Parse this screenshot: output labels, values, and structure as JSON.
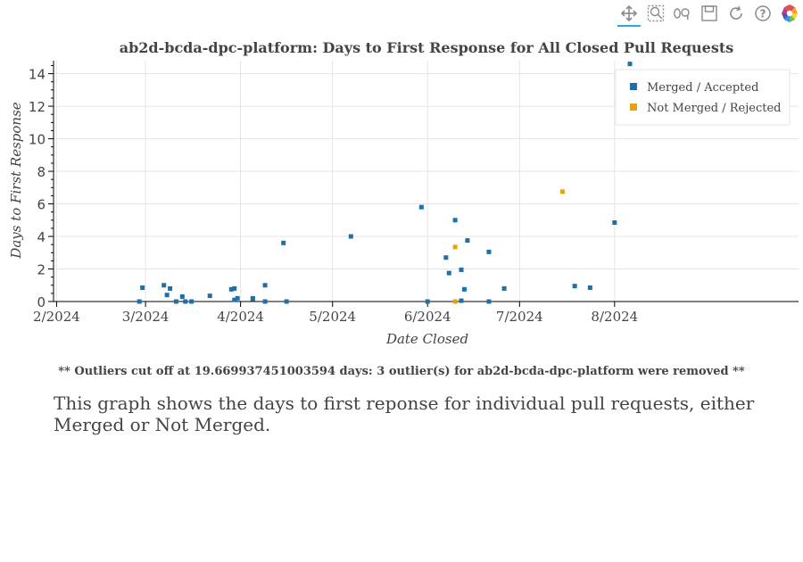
{
  "toolbar": {
    "tools": [
      {
        "name": "pan-tool-icon",
        "label": "Pan",
        "active": true
      },
      {
        "name": "box-zoom-tool-icon",
        "label": "Box Zoom",
        "active": false
      },
      {
        "name": "wheel-zoom-tool-icon",
        "label": "Wheel Zoom",
        "active": false
      },
      {
        "name": "save-tool-icon",
        "label": "Save",
        "active": false
      },
      {
        "name": "reset-tool-icon",
        "label": "Reset",
        "active": false
      },
      {
        "name": "help-tool-icon",
        "label": "Help",
        "active": false
      },
      {
        "name": "bokeh-logo-icon",
        "label": "Bokeh",
        "active": false
      }
    ]
  },
  "chart_data": {
    "type": "scatter",
    "title": "ab2d-bcda-dpc-platform: Days to First Response for All Closed Pull Requests",
    "xlabel": "Date Closed",
    "ylabel": "Days to First Response",
    "xlim": [
      "2024-01-31",
      "2024-09-30"
    ],
    "ylim": [
      0,
      14.8
    ],
    "x_ticks": [
      {
        "date": "2024-02-01",
        "label": "2/2024"
      },
      {
        "date": "2024-03-01",
        "label": "3/2024"
      },
      {
        "date": "2024-04-01",
        "label": "4/2024"
      },
      {
        "date": "2024-05-01",
        "label": "5/2024"
      },
      {
        "date": "2024-06-01",
        "label": "6/2024"
      },
      {
        "date": "2024-07-01",
        "label": "7/2024"
      },
      {
        "date": "2024-08-01",
        "label": "8/2024"
      }
    ],
    "y_ticks": [
      0,
      2,
      4,
      6,
      8,
      10,
      12,
      14
    ],
    "grid": true,
    "legend_position": "top-right",
    "series": [
      {
        "name": "Merged / Accepted",
        "color": "#1f6fa8",
        "points": [
          {
            "x": "2024-02-28",
            "y": 0.0
          },
          {
            "x": "2024-02-29",
            "y": 0.85
          },
          {
            "x": "2024-03-07",
            "y": 1.0
          },
          {
            "x": "2024-03-08",
            "y": 0.4
          },
          {
            "x": "2024-03-09",
            "y": 0.8
          },
          {
            "x": "2024-03-11",
            "y": 0.0
          },
          {
            "x": "2024-03-13",
            "y": 0.3
          },
          {
            "x": "2024-03-14",
            "y": 0.0
          },
          {
            "x": "2024-03-16",
            "y": 0.0
          },
          {
            "x": "2024-03-22",
            "y": 0.35
          },
          {
            "x": "2024-03-29",
            "y": 0.75
          },
          {
            "x": "2024-03-30",
            "y": 0.8
          },
          {
            "x": "2024-03-30",
            "y": 0.1
          },
          {
            "x": "2024-03-31",
            "y": 0.2
          },
          {
            "x": "2024-04-05",
            "y": 0.2
          },
          {
            "x": "2024-04-05",
            "y": 0.15
          },
          {
            "x": "2024-04-09",
            "y": 1.0
          },
          {
            "x": "2024-04-09",
            "y": 0.0
          },
          {
            "x": "2024-04-15",
            "y": 3.6
          },
          {
            "x": "2024-04-16",
            "y": 0.0
          },
          {
            "x": "2024-05-07",
            "y": 4.0
          },
          {
            "x": "2024-05-30",
            "y": 5.8
          },
          {
            "x": "2024-06-01",
            "y": 0.0
          },
          {
            "x": "2024-06-07",
            "y": 2.7
          },
          {
            "x": "2024-06-08",
            "y": 1.75
          },
          {
            "x": "2024-06-10",
            "y": 5.0
          },
          {
            "x": "2024-06-12",
            "y": 1.95
          },
          {
            "x": "2024-06-12",
            "y": 0.05
          },
          {
            "x": "2024-06-13",
            "y": 0.75
          },
          {
            "x": "2024-06-14",
            "y": 3.75
          },
          {
            "x": "2024-06-21",
            "y": 3.05
          },
          {
            "x": "2024-06-21",
            "y": 0.0
          },
          {
            "x": "2024-06-26",
            "y": 0.8
          },
          {
            "x": "2024-07-19",
            "y": 0.95
          },
          {
            "x": "2024-07-24",
            "y": 0.85
          },
          {
            "x": "2024-08-01",
            "y": 4.85
          },
          {
            "x": "2024-08-06",
            "y": 14.6
          }
        ]
      },
      {
        "name": "Not Merged / Rejected",
        "color": "#e3a20f",
        "points": [
          {
            "x": "2024-06-10",
            "y": 3.35
          },
          {
            "x": "2024-06-10",
            "y": 0.0
          },
          {
            "x": "2024-07-15",
            "y": 6.75
          }
        ]
      }
    ]
  },
  "footnote": "** Outliers cut off at 19.669937451003594 days: 3 outlier(s) for ab2d-bcda-dpc-platform were removed **",
  "description": "This graph shows the days to first reponse for individual pull requests, either Merged or Not Merged."
}
